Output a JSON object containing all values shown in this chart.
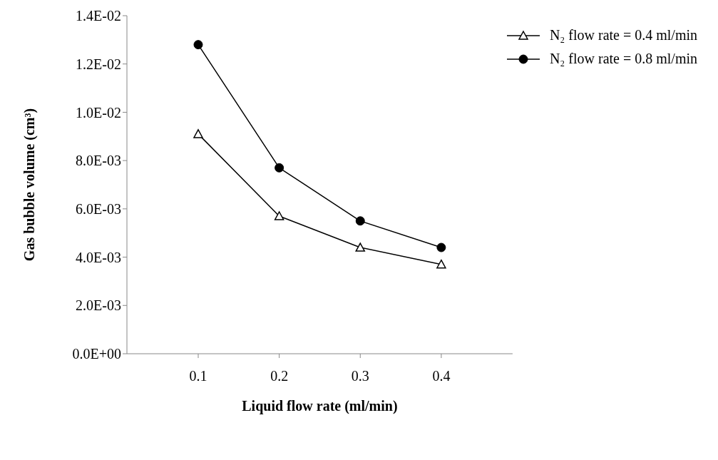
{
  "chart_data": {
    "type": "line",
    "xlabel": "Liquid flow rate (ml/min)",
    "ylabel": "Gas bubble  volume (cm³)",
    "categories": [
      "0.1",
      "0.2",
      "0.3",
      "0.4"
    ],
    "series": [
      {
        "name": "N₂ flow rate = 0.4 ml/min",
        "color": "#000000",
        "marker": "triangle",
        "values": [
          0.0091,
          0.0057,
          0.0044,
          0.0037
        ]
      },
      {
        "name": "N₂ flow rate = 0.8 ml/min",
        "color": "#000000",
        "marker": "circle",
        "values": [
          0.0128,
          0.0077,
          0.0055,
          0.0044
        ]
      }
    ],
    "ylim": [
      0,
      0.014
    ],
    "yticks": [
      {
        "value": 0,
        "label": "0.0E+00"
      },
      {
        "value": 0.002,
        "label": "2.0E-03"
      },
      {
        "value": 0.004,
        "label": "4.0E-03"
      },
      {
        "value": 0.006,
        "label": "6.0E-03"
      },
      {
        "value": 0.008,
        "label": "8.0E-03"
      },
      {
        "value": 0.01,
        "label": "1.0E-02"
      },
      {
        "value": 0.012,
        "label": "1.2E-02"
      },
      {
        "value": 0.014,
        "label": "1.4E-02"
      }
    ],
    "grid": false,
    "legend": "top right",
    "line_style": "solid"
  }
}
